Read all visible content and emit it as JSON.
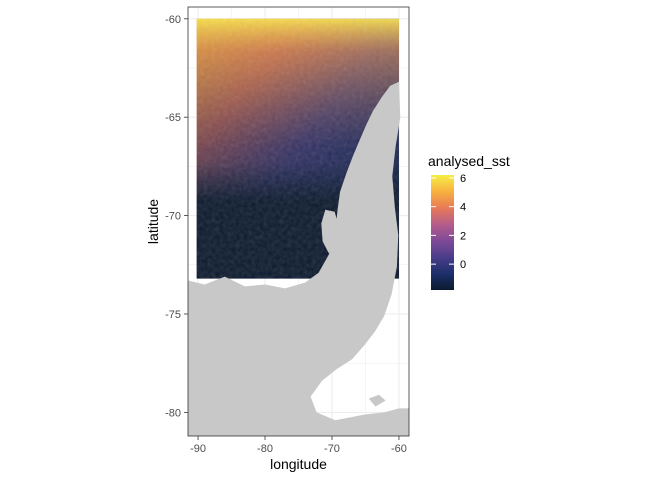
{
  "chart_data": {
    "type": "heatmap",
    "title": "",
    "xlabel": "longitude",
    "ylabel": "latitude",
    "xlim": [
      -91.5,
      -58.5
    ],
    "ylim": [
      -81.2,
      -59.4
    ],
    "x_ticks": [
      -90,
      -80,
      -70,
      -60
    ],
    "y_ticks": [
      -60,
      -65,
      -70,
      -75,
      -80
    ],
    "x_tick_labels": [
      "-90",
      "-80",
      "-70",
      "-60"
    ],
    "y_tick_labels": [
      "-60",
      "-65",
      "-70",
      "-75",
      "-80"
    ],
    "grid": true,
    "panel_background": "#ffffff",
    "grid_color": "#ebebeb",
    "land_color": "#c8c8c8",
    "sst_extent": {
      "lon": [
        -90.2,
        -60.0
      ],
      "lat": [
        -73.2,
        -60.0
      ]
    },
    "legend": {
      "title": "analysed_sst",
      "placement": "right",
      "range": [
        -1.8,
        6.2
      ],
      "ticks": [
        0,
        2,
        4,
        6
      ],
      "tick_labels": [
        "0",
        "2",
        "4",
        "6"
      ],
      "colors": [
        "#0c1a2e",
        "#1c2f6a",
        "#4b3d8b",
        "#7e4b98",
        "#b55d8b",
        "#e87a57",
        "#f8b13f",
        "#f6ee45"
      ]
    },
    "land_polygons": [
      [
        [
          -91.5,
          -81.2
        ],
        [
          -91.5,
          -73.3
        ],
        [
          -89,
          -73.5
        ],
        [
          -86,
          -73.1
        ],
        [
          -83,
          -73.6
        ],
        [
          -80,
          -73.5
        ],
        [
          -77,
          -73.7
        ],
        [
          -74,
          -73.4
        ],
        [
          -72,
          -72.9
        ],
        [
          -70.5,
          -72.0
        ],
        [
          -69.5,
          -70.8
        ],
        [
          -69.2,
          -69.8
        ],
        [
          -68.8,
          -68.8
        ],
        [
          -67.9,
          -67.9
        ],
        [
          -66.9,
          -67.0
        ],
        [
          -65.9,
          -66.2
        ],
        [
          -64.9,
          -65.4
        ],
        [
          -63.9,
          -64.7
        ],
        [
          -62.6,
          -64.0
        ],
        [
          -61.3,
          -63.4
        ],
        [
          -60.0,
          -63.2
        ],
        [
          -59.8,
          -65.0
        ],
        [
          -60.5,
          -66.5
        ],
        [
          -61.0,
          -68.0
        ],
        [
          -60.6,
          -69.6
        ],
        [
          -60.1,
          -71.0
        ],
        [
          -60.3,
          -72.6
        ],
        [
          -61.1,
          -74.0
        ],
        [
          -62.2,
          -75.1
        ],
        [
          -63.6,
          -75.9
        ],
        [
          -65.2,
          -76.6
        ],
        [
          -67.0,
          -77.3
        ],
        [
          -69.3,
          -77.8
        ],
        [
          -71.5,
          -78.4
        ],
        [
          -73.2,
          -79.2
        ],
        [
          -72.3,
          -80.0
        ],
        [
          -69.5,
          -80.4
        ],
        [
          -65.0,
          -80.1
        ],
        [
          -62.2,
          -80.0
        ],
        [
          -60.0,
          -79.8
        ],
        [
          -58.5,
          -79.8
        ],
        [
          -58.5,
          -81.2
        ]
      ],
      [
        [
          -71.0,
          -69.7
        ],
        [
          -69.6,
          -69.8
        ],
        [
          -68.9,
          -70.7
        ],
        [
          -69.3,
          -71.6
        ],
        [
          -70.5,
          -71.9
        ],
        [
          -71.4,
          -71.3
        ],
        [
          -71.6,
          -70.4
        ]
      ],
      [
        [
          -85.0,
          -77.6
        ],
        [
          -83.5,
          -77.4
        ],
        [
          -82.0,
          -77.8
        ],
        [
          -83.3,
          -78.2
        ],
        [
          -84.8,
          -78.0
        ]
      ],
      [
        [
          -80.5,
          -78.2
        ],
        [
          -78.8,
          -78.0
        ],
        [
          -77.2,
          -78.5
        ],
        [
          -78.5,
          -79.0
        ],
        [
          -80.0,
          -78.8
        ]
      ],
      [
        [
          -64.5,
          -79.3
        ],
        [
          -63.0,
          -79.1
        ],
        [
          -62.0,
          -79.4
        ],
        [
          -63.5,
          -79.7
        ]
      ],
      [
        [
          -80.0,
          -75.8
        ],
        [
          -78.0,
          -75.6
        ],
        [
          -76.5,
          -76.0
        ],
        [
          -78.0,
          -76.3
        ],
        [
          -79.6,
          -76.2
        ]
      ]
    ]
  }
}
